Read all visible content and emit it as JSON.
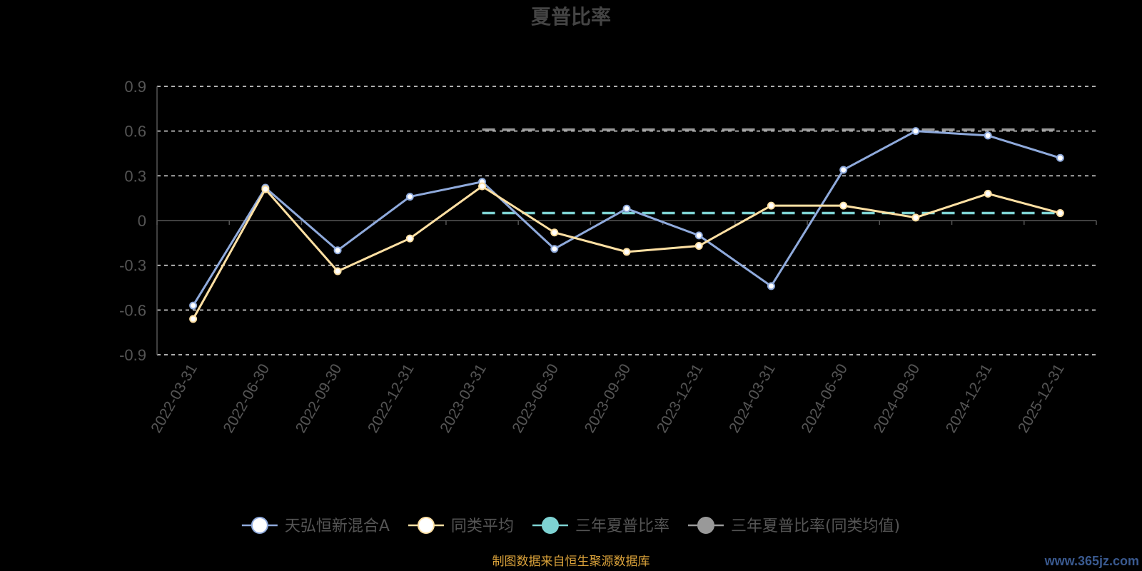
{
  "chart_data": {
    "type": "line",
    "title": "夏普比率",
    "categories": [
      "2022-03-31",
      "2022-06-30",
      "2022-09-30",
      "2022-12-31",
      "2023-03-31",
      "2023-06-30",
      "2023-09-30",
      "2023-12-31",
      "2024-03-31",
      "2024-06-30",
      "2024-09-30",
      "2024-12-31",
      "2025-12-31"
    ],
    "ylim": [
      -0.9,
      0.9
    ],
    "yticks": [
      0.9,
      0.6,
      0.3,
      0,
      -0.3,
      -0.6,
      -0.9
    ],
    "ytick_labels": [
      "0.9",
      "0.6",
      "0.3",
      "0",
      "-0.3",
      "-0.6",
      "-0.9"
    ],
    "grid": true,
    "legend_position": "bottom",
    "series": [
      {
        "name": "天弘恒新混合A",
        "color": "#8faadc",
        "values": [
          -0.57,
          0.22,
          -0.2,
          0.16,
          0.26,
          -0.19,
          0.08,
          -0.1,
          -0.44,
          0.34,
          0.6,
          0.57,
          0.42
        ]
      },
      {
        "name": "同类平均",
        "color": "#ffe0a3",
        "values": [
          -0.66,
          0.21,
          -0.34,
          -0.12,
          0.23,
          -0.08,
          -0.21,
          -0.17,
          0.1,
          0.1,
          0.02,
          0.18,
          0.05
        ]
      },
      {
        "name": "三年夏普比率",
        "color": "#7ed3d3",
        "type": "reference-line",
        "dashed": true,
        "x_start": "2023-03-31",
        "x_end": "2025-12-31",
        "value": 0.05
      },
      {
        "name": "三年夏普比率(同类均值)",
        "color": "#999999",
        "type": "reference-line",
        "dashed": true,
        "x_start": "2023-03-31",
        "x_end": "2025-12-31",
        "value": 0.61
      }
    ]
  },
  "legend": [
    {
      "name": "天弘恒新混合A",
      "marker_fill": "#ffffff",
      "line_color": "#8faadc"
    },
    {
      "name": "同类平均",
      "marker_fill": "#ffffff",
      "line_color": "#ffe0a3"
    },
    {
      "name": "三年夏普比率",
      "marker_fill": "#7ed3d3",
      "line_color": "#7ed3d3"
    },
    {
      "name": "三年夏普比率(同类均值)",
      "marker_fill": "#999999",
      "line_color": "#999999"
    }
  ],
  "source_text": "制图数据来自恒生聚源数据库",
  "watermark": "www.365jz.com"
}
